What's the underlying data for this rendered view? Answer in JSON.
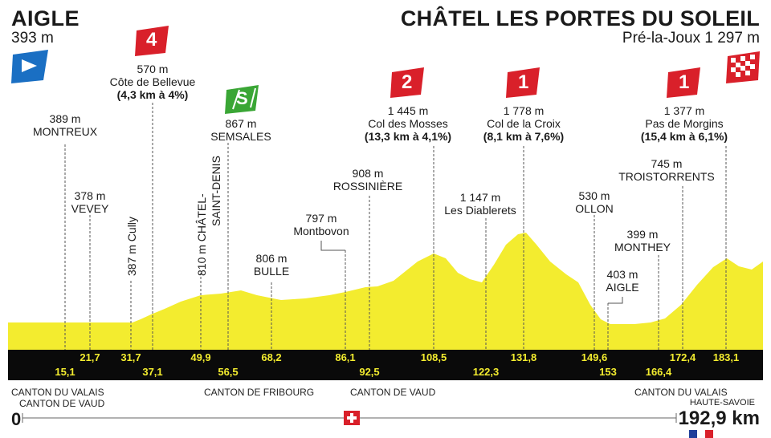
{
  "start": {
    "name": "AIGLE",
    "altitude": "393 m"
  },
  "finish": {
    "name": "CHÂTEL LES PORTES DU SOLEIL",
    "altitude": "Pré-la-Joux 1 297 m"
  },
  "colors": {
    "profile": "#f3ec2f",
    "band": "#0a0a0a",
    "km_text": "#f3ec2f",
    "climb_flag": "#d9202a",
    "sprint_flag": "#3aa635",
    "start_flag": "#1a6fc3"
  },
  "points": [
    {
      "alt": "389 m",
      "name": "MONTREUX"
    },
    {
      "alt": "378 m",
      "name": "VEVEY"
    },
    {
      "label": "387 m Cully"
    },
    {
      "alt": "570 m",
      "name": "Côte de Bellevue",
      "detail": "(4,3 km à 4%)",
      "category": "4"
    },
    {
      "label": "810 m CHÂTEL-",
      "label2": "SAINT-DENIS"
    },
    {
      "alt": "867 m",
      "name": "SEMSALES",
      "category": "S"
    },
    {
      "alt": "806 m",
      "name": "BULLE"
    },
    {
      "alt": "797 m",
      "name": "Montbovon"
    },
    {
      "alt": "908 m",
      "name": "ROSSINIÈRE"
    },
    {
      "alt": "1 445 m",
      "name": "Col des Mosses",
      "detail": "(13,3 km à 4,1%)",
      "category": "2"
    },
    {
      "alt": "1 147 m",
      "name": "Les Diablerets"
    },
    {
      "alt": "1 778 m",
      "name": "Col de la Croix",
      "detail": "(8,1 km à 7,6%)",
      "category": "1"
    },
    {
      "alt": "530 m",
      "name": "OLLON"
    },
    {
      "alt": "403 m",
      "name": "AIGLE"
    },
    {
      "alt": "399 m",
      "name": "MONTHEY"
    },
    {
      "alt": "745 m",
      "name": "TROISTORRENTS"
    },
    {
      "alt": "1 377 m",
      "name": "Pas de Morgins",
      "detail": "(15,4 km à 6,1%)",
      "category": "1"
    }
  ],
  "km_top": [
    "21,7",
    "31,7",
    "49,9",
    "68,2",
    "86,1",
    "108,5",
    "131,8",
    "149,6",
    "172,4",
    "183,1"
  ],
  "km_bottom": [
    "15,1",
    "37,1",
    "56,5",
    "92,5",
    "122,3",
    "153",
    "166,4"
  ],
  "regions": [
    "CANTON DU VALAIS",
    "CANTON DE VAUD",
    "CANTON DE FRIBOURG",
    "CANTON DE VAUD",
    "CANTON DU VALAIS",
    "HAUTE-SAVOIE"
  ],
  "distance": {
    "start": "0",
    "end": "192,9 km"
  }
}
